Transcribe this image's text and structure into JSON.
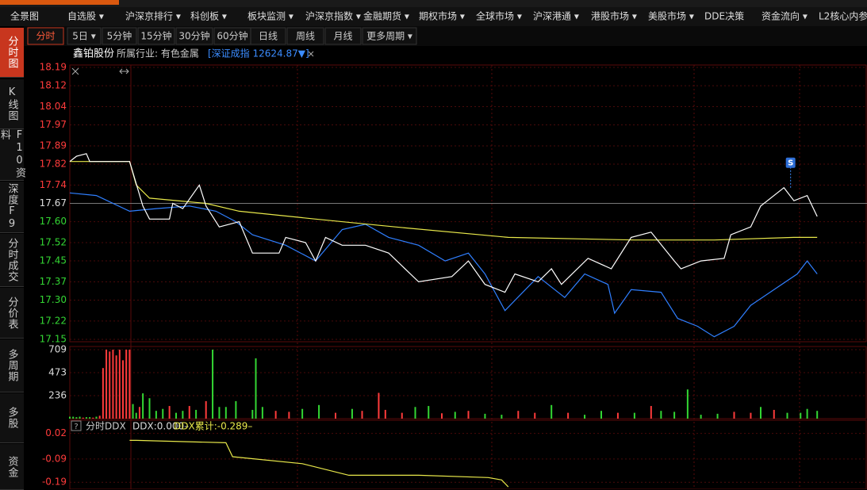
{
  "menu": [
    "全景图",
    "自选股 ▾",
    "沪深京排行 ▾",
    "科创板 ▾",
    "板块监测 ▾",
    "沪深京指数 ▾",
    "金融期货 ▾",
    "期权市场 ▾",
    "全球市场 ▾",
    "沪深港通 ▾",
    "港股市场 ▾",
    "美股市场 ▾",
    "DDE决策",
    "资金流向 ▾",
    "L2核心内参"
  ],
  "periods": [
    "分时",
    "5日 ▾",
    "5分钟",
    "15分钟",
    "30分钟",
    "60分钟",
    "日线",
    "周线",
    "月线",
    "更多周期 ▾"
  ],
  "sidebar": [
    "分时图",
    "K线图",
    "F10资料",
    "深度F9",
    "分时成交",
    "分价表",
    "多周期",
    "多股",
    "资金"
  ],
  "stock": {
    "name": "鑫铂股份",
    "industry": "所属行业: 有色金属",
    "index": "[深证成指 12624.87▼]"
  },
  "chart_data": [
    {
      "type": "line",
      "xlim": [
        0,
        240
      ],
      "ylim": [
        17.15,
        18.19
      ],
      "prev_close": 17.67,
      "yticks": [
        18.19,
        18.12,
        18.04,
        17.97,
        17.89,
        17.82,
        17.74,
        17.67,
        {
          "value": 17.6,
          "label": "17.60"
        },
        17.52,
        17.45,
        17.37,
        {
          "value": 17.3,
          "label": "17.30"
        },
        17.22,
        17.15
      ],
      "up_color": "#ff3b3b",
      "down_color": "#33d633",
      "flat_color": "#dddddd",
      "series": [
        {
          "color": "#2f7fff",
          "x": [
            0,
            8,
            18,
            26,
            36,
            44,
            50,
            55,
            65,
            74,
            82,
            89,
            96,
            105,
            113,
            120,
            125,
            131,
            141,
            149,
            155,
            162,
            164,
            169,
            178,
            183,
            189,
            194,
            200,
            205,
            212,
            219,
            222,
            225
          ],
          "values": [
            17.71,
            17.7,
            17.64,
            17.65,
            17.66,
            17.64,
            17.6,
            17.55,
            17.51,
            17.45,
            17.57,
            17.59,
            17.54,
            17.51,
            17.45,
            17.48,
            17.4,
            17.26,
            17.39,
            17.31,
            17.4,
            17.36,
            17.25,
            17.34,
            17.33,
            17.23,
            17.2,
            17.16,
            17.2,
            17.28,
            17.34,
            17.4,
            17.45,
            17.4
          ]
        },
        {
          "color": "#e8e84a",
          "x": [
            0,
            18,
            20,
            24,
            41,
            51,
            74,
            98,
            132,
            170,
            194,
            218,
            225
          ],
          "values": [
            17.83,
            17.83,
            17.74,
            17.69,
            17.67,
            17.64,
            17.61,
            17.58,
            17.54,
            17.53,
            17.53,
            17.54,
            17.54
          ]
        },
        {
          "color": "#ffffff",
          "x": [
            0,
            2,
            5,
            6,
            18,
            22,
            24,
            30,
            31,
            34,
            39,
            41,
            45,
            51,
            55,
            63,
            65,
            71,
            74,
            77,
            82,
            89,
            96,
            105,
            115,
            120,
            125,
            131,
            134,
            141,
            145,
            148,
            156,
            163,
            169,
            175,
            182,
            184,
            190,
            197,
            199,
            205,
            208,
            215,
            218,
            222,
            225
          ],
          "values": [
            17.83,
            17.85,
            17.86,
            17.83,
            17.83,
            17.66,
            17.61,
            17.61,
            17.67,
            17.65,
            17.74,
            17.66,
            17.58,
            17.6,
            17.48,
            17.48,
            17.54,
            17.52,
            17.45,
            17.54,
            17.51,
            17.51,
            17.48,
            17.37,
            17.39,
            17.45,
            17.36,
            17.33,
            17.4,
            17.37,
            17.42,
            17.36,
            17.46,
            17.42,
            17.54,
            17.56,
            17.45,
            17.42,
            17.45,
            17.46,
            17.55,
            17.58,
            17.66,
            17.73,
            17.68,
            17.7,
            17.62
          ]
        }
      ],
      "annotations": [
        {
          "x": 217,
          "y": 17.73,
          "label": "S"
        }
      ]
    },
    {
      "type": "bar",
      "xlim": [
        0,
        240
      ],
      "ylim": [
        0,
        709
      ],
      "yticks": [
        236,
        473,
        709
      ],
      "x": [
        0,
        1,
        2,
        3,
        4,
        5,
        6,
        7,
        8,
        9,
        10,
        11,
        12,
        13,
        14,
        15,
        16,
        17,
        18,
        19,
        20,
        21,
        22,
        24,
        26,
        28,
        30,
        32,
        34,
        36,
        38,
        41,
        43,
        45,
        47,
        50,
        55,
        56,
        58,
        62,
        66,
        70,
        75,
        80,
        85,
        88,
        93,
        95,
        100,
        104,
        108,
        112,
        116,
        120,
        125,
        130,
        135,
        140,
        145,
        150,
        155,
        160,
        165,
        170,
        175,
        178,
        182,
        186,
        190,
        195,
        200,
        205,
        208,
        212,
        216,
        220,
        222,
        225
      ],
      "values": [
        20,
        20,
        15,
        20,
        10,
        15,
        15,
        10,
        20,
        30,
        520,
        709,
        690,
        709,
        650,
        709,
        600,
        709,
        709,
        150,
        60,
        120,
        260,
        210,
        80,
        100,
        130,
        60,
        80,
        130,
        90,
        180,
        709,
        120,
        120,
        180,
        90,
        620,
        120,
        80,
        70,
        100,
        140,
        60,
        100,
        80,
        265,
        90,
        60,
        120,
        130,
        55,
        70,
        80,
        50,
        40,
        80,
        60,
        140,
        60,
        40,
        80,
        60,
        60,
        130,
        80,
        70,
        300,
        40,
        50,
        70,
        60,
        120,
        90,
        60,
        60,
        100,
        80
      ],
      "colors": [
        "#33d633",
        "#33d633",
        "#33d633",
        "#33d633",
        "#ff3b3b",
        "#33d633",
        "#33d633",
        "#ff3b3b",
        "#33d633",
        "#ff3b3b",
        "#ff3b3b",
        "#ff3b3b",
        "#ff3b3b",
        "#ff3b3b",
        "#ff3b3b",
        "#ff3b3b",
        "#ff3b3b",
        "#ff3b3b",
        "#ff3b3b",
        "#33d633",
        "#33d633",
        "#ff3b3b",
        "#33d633",
        "#33d633",
        "#33d633",
        "#33d633",
        "#ff3b3b",
        "#33d633",
        "#33d633",
        "#ff3b3b",
        "#33d633",
        "#ff3b3b",
        "#33d633",
        "#33d633",
        "#33d633",
        "#33d633",
        "#33d633",
        "#33d633",
        "#33d633",
        "#ff3b3b",
        "#ff3b3b",
        "#33d633",
        "#33d633",
        "#ff3b3b",
        "#33d633",
        "#ff3b3b",
        "#ff3b3b",
        "#ff3b3b",
        "#ff3b3b",
        "#33d633",
        "#33d633",
        "#ff3b3b",
        "#33d633",
        "#ff3b3b",
        "#33d633",
        "#33d633",
        "#ff3b3b",
        "#ff3b3b",
        "#33d633",
        "#ff3b3b",
        "#33d633",
        "#33d633",
        "#ff3b3b",
        "#33d633",
        "#ff3b3b",
        "#33d633",
        "#33d633",
        "#33d633",
        "#33d633",
        "#33d633",
        "#ff3b3b",
        "#ff3b3b",
        "#33d633",
        "#ff3b3b",
        "#33d633",
        "#33d633",
        "#33d633",
        "#33d633"
      ]
    },
    {
      "type": "line",
      "title": "分时DDX",
      "labels": [
        "DDX:0.000–",
        "DDX累计:-0.289–"
      ],
      "label_colors": [
        "#dddddd",
        "#e8e84a"
      ],
      "xlim": [
        0,
        240
      ],
      "ylim": [
        -0.22,
        0.07
      ],
      "yticks": [
        0.02,
        -0.09,
        -0.19
      ],
      "tick_color": "#ff3b3b",
      "series": [
        {
          "color": "#e8e84a",
          "x": [
            18,
            20,
            47,
            49,
            70,
            84,
            105,
            126,
            130,
            132
          ],
          "values": [
            -0.01,
            -0.01,
            -0.02,
            -0.08,
            -0.11,
            -0.16,
            -0.16,
            -0.17,
            -0.18,
            -0.21
          ]
        }
      ]
    }
  ]
}
